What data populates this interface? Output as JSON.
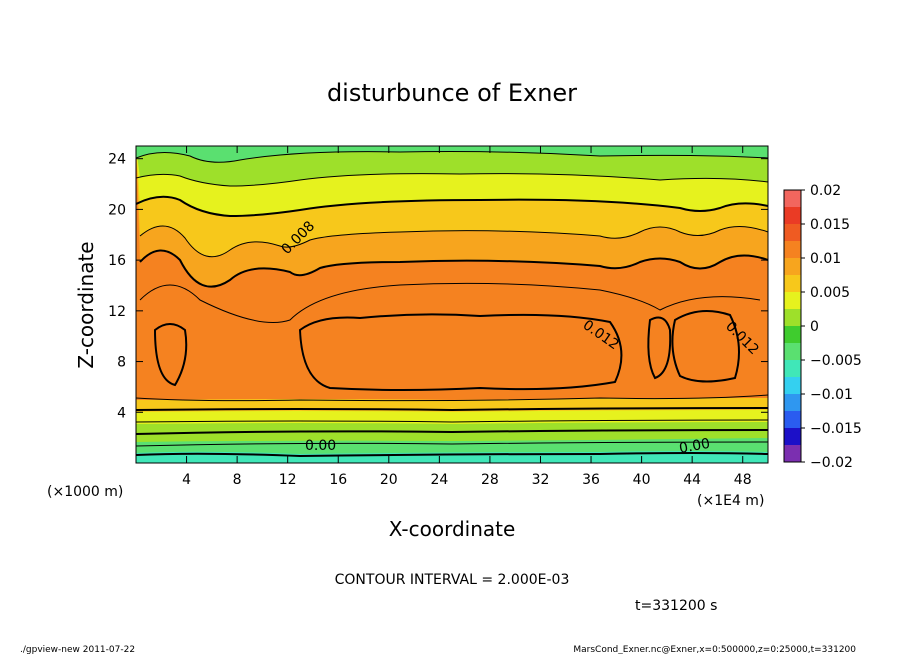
{
  "chart_data": {
    "type": "heatmap",
    "title": "disturbunce of Exner",
    "xlabel": "X-coordinate",
    "ylabel": "Z-coordinate",
    "x_unit": "(×1E4 m)",
    "y_unit": "(×1000 m)",
    "xlim": [
      0,
      50
    ],
    "ylim": [
      0,
      25
    ],
    "x_ticks": [
      4,
      8,
      12,
      16,
      20,
      24,
      28,
      32,
      36,
      40,
      44,
      48
    ],
    "y_ticks": [
      4,
      8,
      12,
      16,
      20,
      24
    ],
    "colorbar": {
      "levels": [
        -0.02,
        -0.0175,
        -0.015,
        -0.0125,
        -0.01,
        -0.0075,
        -0.005,
        -0.0025,
        0,
        0.0025,
        0.005,
        0.0075,
        0.01,
        0.0125,
        0.015,
        0.0175,
        0.02
      ],
      "tick_labels": [
        "0.02",
        "0.015",
        "0.01",
        "0.005",
        "0",
        "−0.005",
        "−0.01",
        "−0.015",
        "−0.02"
      ],
      "colors": [
        "#7b2fb0",
        "#1c10c8",
        "#2a5cf0",
        "#2f97f0",
        "#34d0f0",
        "#40e7b8",
        "#5ae070",
        "#3fcc2e",
        "#9ee02a",
        "#e6f21e",
        "#f7c81b",
        "#f7a51e",
        "#f58220",
        "#ef5b22",
        "#ea3b25",
        "#f2665e",
        "#f7a0a0"
      ]
    },
    "contour_labels": [
      "0.008",
      "0.012",
      "0.012",
      "0.00",
      "0.00"
    ],
    "contour_interval_text": "CONTOUR INTERVAL = 2.000E-03",
    "time_text": "t=331200 s"
  },
  "footer": {
    "left": "./gpview-new  2011-07-22",
    "right": "MarsCond_Exner.nc@Exner,x=0:500000,z=0:25000,t=331200"
  }
}
